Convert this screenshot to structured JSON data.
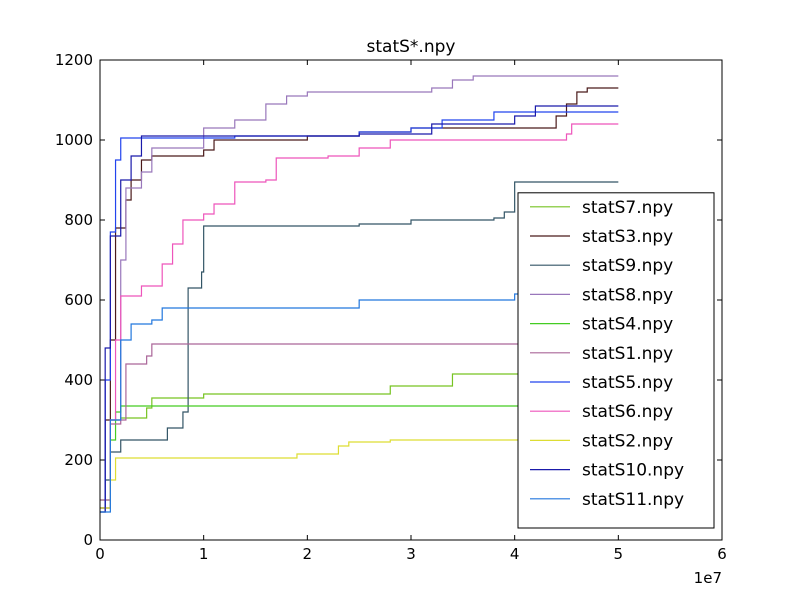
{
  "chart_data": {
    "type": "line",
    "title": "statS*.npy",
    "drawstyle": "steps-post",
    "x_offset_label": "1e7",
    "xlim": [
      0,
      6
    ],
    "xticks": [
      0,
      1,
      2,
      3,
      4,
      5,
      6
    ],
    "ylim": [
      0,
      1200
    ],
    "yticks": [
      0,
      200,
      400,
      600,
      800,
      1000,
      1200
    ],
    "grid": false,
    "legend_position": "lower right",
    "series": [
      {
        "name": "statS7.npy",
        "color": "#77c322",
        "x": [
          0,
          0.1,
          0.2,
          0.45,
          0.5,
          1.0,
          2.8,
          3.4,
          5.0
        ],
        "values": [
          100,
          300,
          305,
          330,
          355,
          365,
          385,
          415,
          415
        ]
      },
      {
        "name": "statS3.npy",
        "color": "#4a1a1a",
        "x": [
          0,
          0.05,
          0.1,
          0.15,
          0.25,
          0.3,
          0.4,
          0.5,
          1.0,
          1.1,
          2.0,
          2.5,
          3.0,
          4.4,
          4.5,
          4.6,
          4.7,
          5.0
        ],
        "values": [
          70,
          300,
          500,
          780,
          850,
          900,
          950,
          960,
          975,
          1000,
          1010,
          1020,
          1030,
          1060,
          1090,
          1120,
          1130,
          1130
        ]
      },
      {
        "name": "statS9.npy",
        "color": "#335566",
        "x": [
          0,
          0.05,
          0.1,
          0.2,
          0.65,
          0.8,
          0.85,
          0.98,
          1.0,
          2.5,
          3.0,
          3.8,
          3.9,
          4.0,
          5.0
        ],
        "values": [
          80,
          150,
          220,
          250,
          280,
          320,
          630,
          670,
          785,
          790,
          800,
          805,
          820,
          895,
          895
        ]
      },
      {
        "name": "statS8.npy",
        "color": "#9977bb",
        "x": [
          0,
          0.1,
          0.2,
          0.25,
          0.4,
          0.5,
          1.0,
          1.3,
          1.6,
          1.8,
          2.0,
          3.2,
          3.4,
          3.6,
          5.0
        ],
        "values": [
          80,
          300,
          700,
          880,
          920,
          980,
          1030,
          1050,
          1090,
          1110,
          1120,
          1130,
          1150,
          1160,
          1160
        ]
      },
      {
        "name": "statS4.npy",
        "color": "#44cc22",
        "x": [
          0,
          0.1,
          0.15,
          0.2,
          5.0
        ],
        "values": [
          80,
          250,
          320,
          335,
          335
        ]
      },
      {
        "name": "statS1.npy",
        "color": "#aa6699",
        "x": [
          0,
          0.1,
          0.2,
          0.25,
          0.45,
          0.5,
          5.0
        ],
        "values": [
          100,
          290,
          300,
          440,
          460,
          490,
          490
        ]
      },
      {
        "name": "statS5.npy",
        "color": "#2244ee",
        "x": [
          0,
          0.05,
          0.1,
          0.15,
          0.2,
          1.3,
          2.5,
          3.0,
          3.3,
          3.8,
          5.0
        ],
        "values": [
          80,
          400,
          770,
          950,
          1005,
          1010,
          1020,
          1030,
          1050,
          1070,
          1070
        ]
      },
      {
        "name": "statS6.npy",
        "color": "#ee55bb",
        "x": [
          0,
          0.1,
          0.15,
          0.2,
          0.4,
          0.6,
          0.7,
          0.8,
          1.0,
          1.1,
          1.3,
          1.6,
          1.7,
          2.2,
          2.5,
          2.8,
          4.5,
          4.55,
          5.0
        ],
        "values": [
          80,
          300,
          500,
          610,
          635,
          690,
          740,
          800,
          815,
          840,
          895,
          900,
          955,
          960,
          980,
          1000,
          1015,
          1040,
          1040
        ]
      },
      {
        "name": "statS2.npy",
        "color": "#dddd33",
        "x": [
          0,
          0.1,
          0.15,
          1.9,
          2.3,
          2.4,
          2.8,
          5.0
        ],
        "values": [
          80,
          150,
          205,
          215,
          235,
          245,
          250,
          250
        ]
      },
      {
        "name": "statS10.npy",
        "color": "#1a1aaa",
        "x": [
          0,
          0.05,
          0.1,
          0.2,
          0.3,
          0.4,
          2.5,
          3.2,
          4.0,
          4.2,
          5.0
        ],
        "values": [
          70,
          480,
          760,
          900,
          960,
          1010,
          1015,
          1040,
          1060,
          1085,
          1085
        ]
      },
      {
        "name": "statS11.npy",
        "color": "#2277dd",
        "x": [
          0,
          0.1,
          0.2,
          0.3,
          0.5,
          0.6,
          2.5,
          4.0,
          5.0
        ],
        "values": [
          70,
          300,
          500,
          540,
          550,
          580,
          600,
          615,
          615
        ]
      }
    ]
  }
}
